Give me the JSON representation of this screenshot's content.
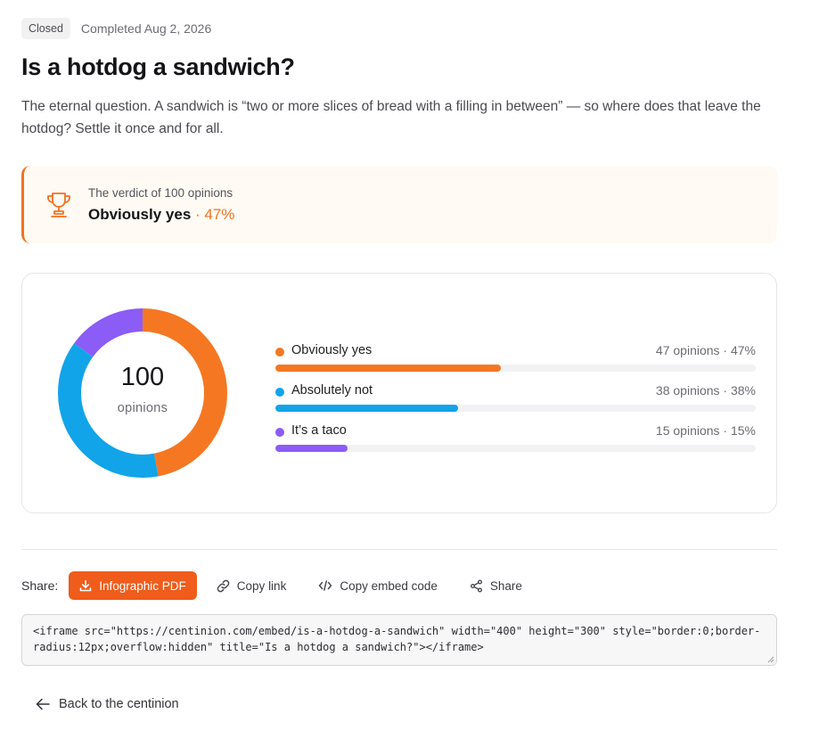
{
  "header": {
    "status_badge": "Closed",
    "completed_text": "Completed Aug 2, 2026",
    "title": "Is a hotdog a sandwich?",
    "description": "The eternal question. A sandwich is “two or more slices of bread with a filling in between” — so where does that leave the hotdog? Settle it once and for all."
  },
  "verdict": {
    "label": "The verdict of 100 opinions",
    "winner": "Obviously yes",
    "percent_text": "· 47%",
    "icon": "trophy-icon",
    "accent_color": "#f07322"
  },
  "results": {
    "total_value": "100",
    "total_label": "opinions",
    "options": [
      {
        "name": "Obviously yes",
        "stats": "47 opinions · 47%",
        "fraction": 0.47,
        "color": "#f57722"
      },
      {
        "name": "Absolutely not",
        "stats": "38 opinions · 38%",
        "fraction": 0.38,
        "color": "#12a4e8"
      },
      {
        "name": "It’s a taco",
        "stats": "15 opinions · 15%",
        "fraction": 0.15,
        "color": "#8b5cf6"
      }
    ]
  },
  "share": {
    "label": "Share:",
    "pdf_button": "Infographic PDF",
    "copy_link": "Copy link",
    "copy_embed": "Copy embed code",
    "share_button": "Share",
    "embed_code": "<iframe src=\"https://centinion.com/embed/is-a-hotdog-a-sandwich\" width=\"400\" height=\"300\" style=\"border:0;border-radius:12px;overflow:hidden\" title=\"Is a hotdog a sandwich?\"></iframe>"
  },
  "footer": {
    "back_link": "Back to the centinion"
  }
}
